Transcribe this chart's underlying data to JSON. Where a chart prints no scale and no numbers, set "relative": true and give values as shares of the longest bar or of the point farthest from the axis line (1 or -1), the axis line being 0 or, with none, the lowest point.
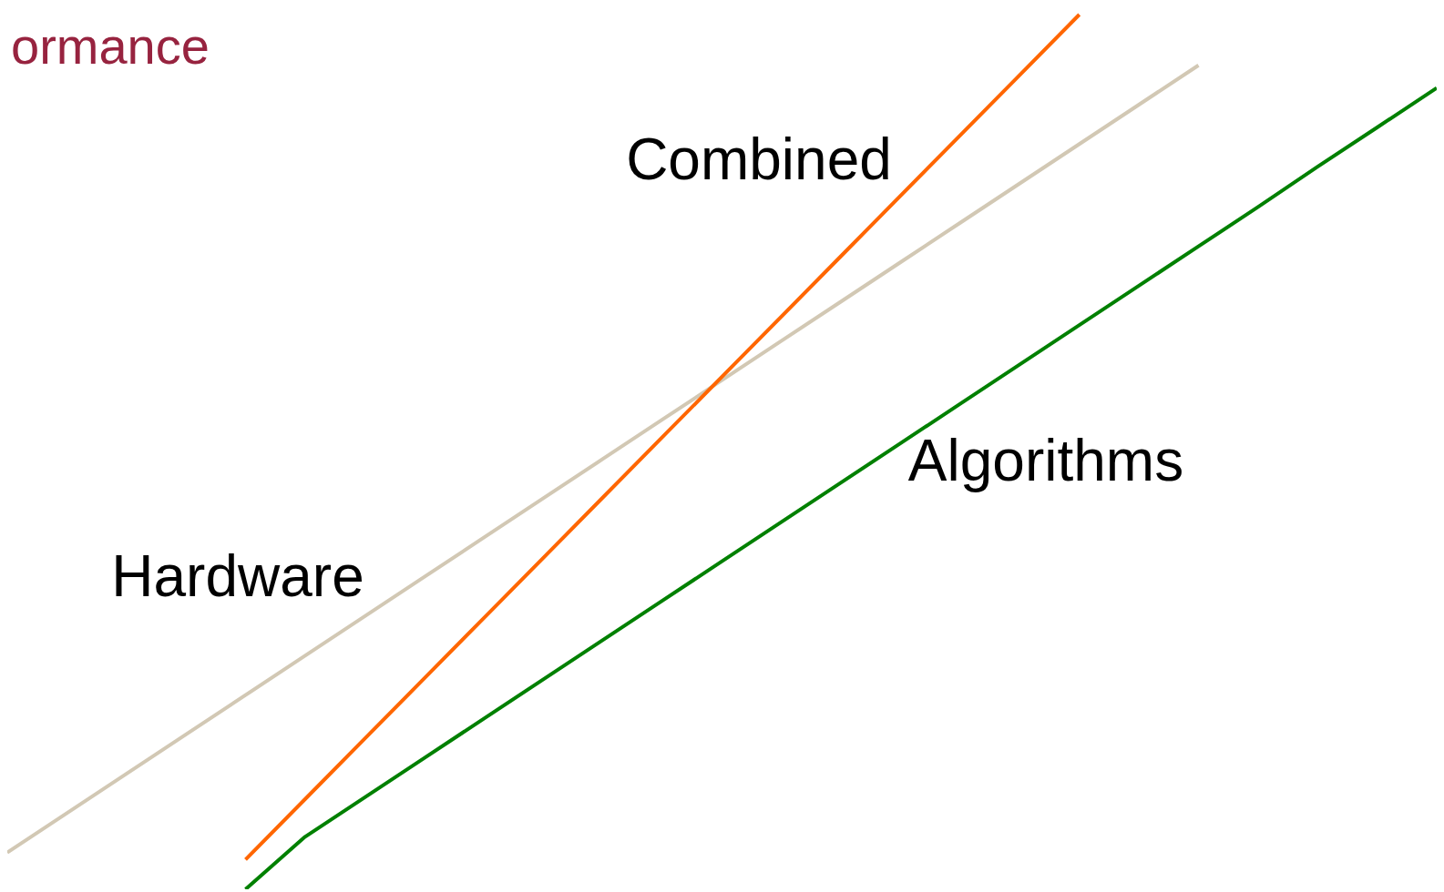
{
  "chart_data": {
    "type": "line",
    "relative": true,
    "ylabel": "ormance",
    "categories": [
      null,
      null,
      null,
      null,
      null,
      null,
      null,
      null,
      null,
      null,
      null,
      null,
      null,
      null,
      null,
      null,
      null,
      null,
      null,
      null,
      null,
      null,
      null,
      null,
      null
    ],
    "series": [
      {
        "name": "Hardware",
        "color": "#d2c8b4",
        "values": [
          0.042,
          0.087,
          0.132,
          0.177,
          0.222,
          0.267,
          0.312,
          0.357,
          0.402,
          0.447,
          0.492,
          0.537,
          0.582,
          0.627,
          0.672,
          0.717,
          0.762,
          0.807,
          0.852,
          0.897,
          0.942,
          null,
          null,
          null,
          null
        ]
      },
      {
        "name": "Combined",
        "color": "#ff6600",
        "values": [
          null,
          null,
          null,
          null,
          0.034,
          0.103,
          0.172,
          0.241,
          0.31,
          0.379,
          0.448,
          0.517,
          0.586,
          0.655,
          0.724,
          0.793,
          0.862,
          0.931,
          1.0,
          null,
          null,
          null,
          null,
          null,
          null
        ]
      },
      {
        "name": "Algorithms",
        "color": "#008000",
        "values": [
          null,
          null,
          null,
          null,
          0.0,
          0.06,
          0.105,
          0.15,
          0.195,
          0.24,
          0.285,
          0.33,
          0.375,
          0.42,
          0.465,
          0.51,
          0.555,
          0.6,
          0.645,
          0.69,
          0.735,
          0.78,
          0.826,
          0.871,
          0.916
        ]
      }
    ]
  }
}
